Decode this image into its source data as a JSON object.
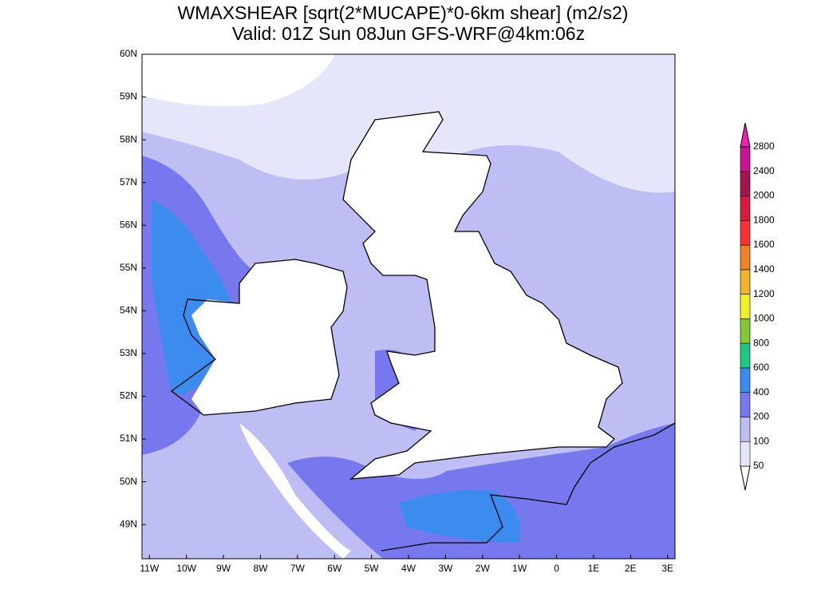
{
  "title": [
    "WMAXSHEAR [sqrt(2*MUCAPE)*0-6km shear] (m2/s2)",
    "Valid: 01Z Sun 08Jun GFS-WRF@4km:06z"
  ],
  "map": {
    "lonlim": [
      -11.2,
      3.2
    ],
    "latlim": [
      48.2,
      60
    ],
    "lonticks": [
      {
        "value": -11,
        "label": "11W"
      },
      {
        "value": -10,
        "label": "10W"
      },
      {
        "value": -9,
        "label": "9W"
      },
      {
        "value": -8,
        "label": "8W"
      },
      {
        "value": -7,
        "label": "7W"
      },
      {
        "value": -6,
        "label": "6W"
      },
      {
        "value": -5,
        "label": "5W"
      },
      {
        "value": -4,
        "label": "4W"
      },
      {
        "value": -3,
        "label": "3W"
      },
      {
        "value": -2,
        "label": "2W"
      },
      {
        "value": -1,
        "label": "1W"
      },
      {
        "value": 0,
        "label": "0"
      },
      {
        "value": 1,
        "label": "1E"
      },
      {
        "value": 2,
        "label": "2E"
      },
      {
        "value": 3,
        "label": "3E"
      }
    ],
    "latticks": [
      {
        "value": 60,
        "label": "60N"
      },
      {
        "value": 59,
        "label": "59N"
      },
      {
        "value": 58,
        "label": "58N"
      },
      {
        "value": 57,
        "label": "57N"
      },
      {
        "value": 56,
        "label": "56N"
      },
      {
        "value": 55,
        "label": "55N"
      },
      {
        "value": 54,
        "label": "54N"
      },
      {
        "value": 53,
        "label": "53N"
      },
      {
        "value": 52,
        "label": "52N"
      },
      {
        "value": 51,
        "label": "51N"
      },
      {
        "value": 50,
        "label": "50N"
      },
      {
        "value": 49,
        "label": "49N"
      }
    ]
  },
  "colorbar": {
    "levels": [
      50,
      100,
      200,
      400,
      600,
      800,
      1000,
      1200,
      1400,
      1600,
      1800,
      2000,
      2400,
      2800
    ],
    "colors": [
      "#e6e6fa",
      "#bebef5",
      "#7878ee",
      "#3c8cf0",
      "#1ec884",
      "#82c832",
      "#f0f02a",
      "#f0b428",
      "#f08228",
      "#fa3232",
      "#d21e3c",
      "#a01450",
      "#c81496"
    ],
    "under_color": "#ffffff",
    "over_color": "#f01eb4"
  }
}
